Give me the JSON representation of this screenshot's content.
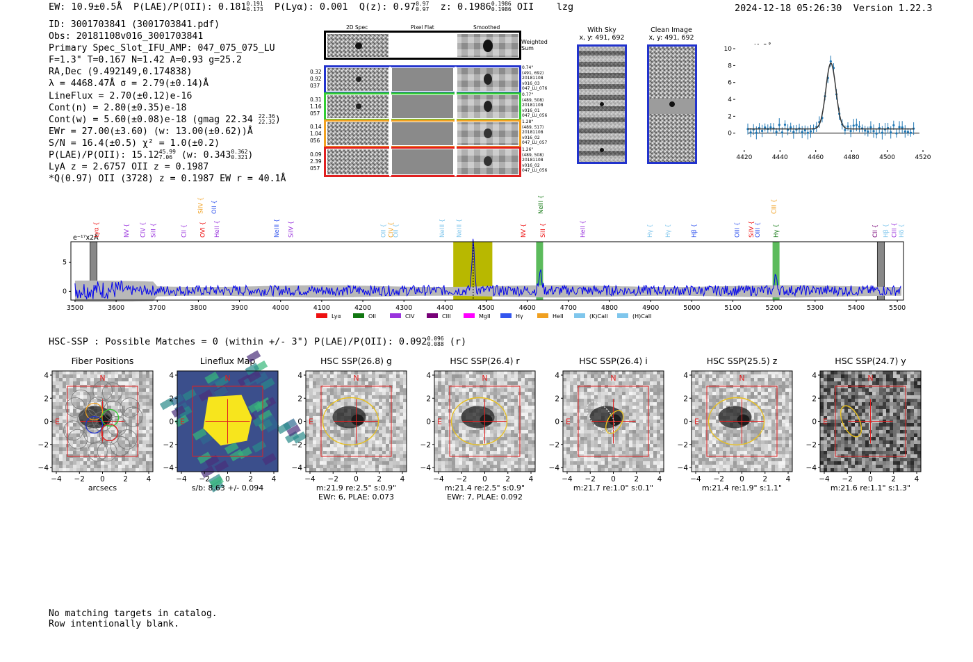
{
  "header": {
    "ew": "EW: 10.9±0.5Å",
    "plae_label": "P(LAE)/P(OII):",
    "plae_val": "0.181",
    "plae_hi": "0.191",
    "plae_lo": "0.173",
    "plya": "P(Lyα): 0.001",
    "qz_label": "Q(z):",
    "qz_val": "0.97",
    "qz_hi": "0.97",
    "qz_lo": "0.97",
    "z_label": "z:",
    "z_val": "0.1986",
    "z_hi": "0.1986",
    "z_lo": "0.1986",
    "z_line": "OII",
    "tag": "lzg",
    "timestamp": "2024-12-18 05:26:30",
    "version": "Version 1.22.3"
  },
  "info": {
    "id": "ID: 3001703841 (3001703841.pdf)",
    "obs": "Obs: 20181108v016_3001703841",
    "primary": "Primary Spec_Slot_IFU_AMP: 047_075_075_LU",
    "fwhm": "F=1.3\"  T=0.167  N=1.42  A=0.93  g=25.2",
    "radec": "RA,Dec (9.492149,0.174838)",
    "lambda": "λ = 4468.47Å  σ = 2.79(±0.14)Å",
    "lineflux": "LineFlux = 2.70(±0.12)e-16",
    "contn": "Cont(n) = 2.80(±0.35)e-18",
    "contw": "Cont(w) = 5.60(±0.08)e-18 (gmag 22.34",
    "contw_hi": "22.36",
    "contw_lo": "22.32",
    "contw_end": ")",
    "ewr": "EWr = 27.00(±3.60) (w: 13.00(±0.62))Å",
    "sn": "S/N = 16.4(±0.5)  χ² = 1.0(±0.2)",
    "plae": "P(LAE)/P(OII): 15.12",
    "plae_hi": "45.99",
    "plae_lo": "7.06",
    "plae_w": "(w: 0.343",
    "plae_w_hi": "0.362",
    "plae_w_lo": "0.321",
    "plae_w_end": ")",
    "lya": "LyA z = 2.6757  OII z = 0.1987",
    "q": "*Q(0.97) OII (3728) z = 0.1987  EW r = 40.1Å"
  },
  "stamps": {
    "col_2d": "2D Spec",
    "col_flat": "Pixel Flat",
    "col_smooth": "Smoothed",
    "weighted": [
      "Weighted",
      "Sum"
    ],
    "rows": [
      {
        "color": "#2233cc",
        "left": [
          "0.32",
          "0.92",
          "037"
        ],
        "right": [
          "0.74\"",
          "(491, 692)",
          "20181108",
          "v016_03",
          "047_LU_076"
        ]
      },
      {
        "color": "#33cc33",
        "left": [
          "0.31",
          "1.16",
          "057"
        ],
        "right": [
          "0.77\"",
          "(489, 508)",
          "20181108",
          "v016_01",
          "047_LU_056"
        ]
      },
      {
        "color": "#f0a020",
        "left": [
          "0.14",
          "1.04",
          "056"
        ],
        "right": [
          "1.28\"",
          "(489, 517)",
          "20181108",
          "v016_02",
          "047_LU_057"
        ]
      },
      {
        "color": "#e02020",
        "left": [
          "0.09",
          "2.39",
          "057"
        ],
        "right": [
          "1.26\"",
          "(489, 508)",
          "20181108",
          "v016_02",
          "047_LU_056"
        ]
      }
    ],
    "sky_title": "With Sky",
    "sky_coords": "x, y: 491, 692",
    "clean_title": "Clean Image",
    "clean_coords": "x, y: 491, 692"
  },
  "colors": {
    "blue": "#0000ee",
    "yellow": "#b8b800",
    "green": "#33aa33",
    "fit": "#1f77b4"
  },
  "chart_data": [
    {
      "type": "scatter",
      "title": "",
      "ylabel": "e⁻¹⁷x2Å",
      "xlim": [
        4415,
        4520
      ],
      "ylim": [
        -2,
        10.5
      ],
      "xticks": [
        "4420",
        "4440",
        "4460",
        "4480",
        "4500",
        "4520"
      ],
      "yticks": [
        "0",
        "2",
        "4",
        "6",
        "8",
        "10"
      ],
      "line_center": 4468.47,
      "line_sigma": 2.79,
      "line_peak": 7.8,
      "continuum": 0.5
    },
    {
      "type": "line",
      "ylabel": "e⁻¹⁷x2Å",
      "xlim": [
        3490,
        5515
      ],
      "ylim": [
        -1.5,
        8.5
      ],
      "xticks": [
        "3500",
        "3600",
        "3700",
        "3800",
        "3900",
        "4000",
        "4100",
        "4200",
        "4300",
        "4400",
        "4500",
        "4600",
        "4700",
        "4800",
        "4900",
        "5000",
        "5100",
        "5200",
        "5300",
        "5400",
        "5500"
      ],
      "yticks": [
        "0",
        "5"
      ],
      "highlight_band": [
        4420,
        4515
      ],
      "marked_lines": [
        4630,
        5205
      ],
      "masked": [
        3545,
        5460
      ],
      "legend": [
        {
          "label": "Lyα",
          "color": "#ee1111"
        },
        {
          "label": "OII",
          "color": "#117711"
        },
        {
          "label": "CIV",
          "color": "#9933dd"
        },
        {
          "label": "CIII",
          "color": "#770077"
        },
        {
          "label": "MgII",
          "color": "#ff00ff"
        },
        {
          "label": "Hγ",
          "color": "#3355ee"
        },
        {
          "label": "HeII",
          "color": "#f0a020"
        },
        {
          "label": "(K)CaII",
          "color": "#7fc6ec"
        },
        {
          "label": "(H)CaII",
          "color": "#7fc6ec"
        }
      ],
      "line_labels": [
        {
          "name": "Lyα",
          "x": 3552,
          "row": 0,
          "color": "#ee1111"
        },
        {
          "name": "NV",
          "x": 3625,
          "row": 0,
          "color": "#9933dd"
        },
        {
          "name": "CIV",
          "x": 3665,
          "row": 0,
          "color": "#9933dd"
        },
        {
          "name": "SiII",
          "x": 3690,
          "row": 0,
          "color": "#9933dd"
        },
        {
          "name": "CII",
          "x": 3765,
          "row": 0,
          "color": "#9933dd"
        },
        {
          "name": "SiIV",
          "x": 3805,
          "row": 2,
          "color": "#f0a020"
        },
        {
          "name": "OVI",
          "x": 3810,
          "row": 0,
          "color": "#ee1111"
        },
        {
          "name": "OII",
          "x": 3838,
          "row": 2,
          "color": "#3355ee"
        },
        {
          "name": "HeII",
          "x": 3845,
          "row": 0,
          "color": "#9933dd"
        },
        {
          "name": "NeIII",
          "x": 3990,
          "row": 0,
          "color": "#3355ee"
        },
        {
          "name": "SiIV",
          "x": 4025,
          "row": 0,
          "color": "#9933dd"
        },
        {
          "name": "OII",
          "x": 4250,
          "row": 0,
          "color": "#7fc6ec"
        },
        {
          "name": "CIV",
          "x": 4268,
          "row": 0,
          "color": "#f0a020"
        },
        {
          "name": "OII",
          "x": 4280,
          "row": 0,
          "color": "#7fc6ec"
        },
        {
          "name": "NeIII",
          "x": 4393,
          "row": 0,
          "color": "#7fc6ec"
        },
        {
          "name": "NeIII",
          "x": 4434,
          "row": 0,
          "color": "#7fc6ec"
        },
        {
          "name": "NV",
          "x": 4590,
          "row": 0,
          "color": "#ee1111"
        },
        {
          "name": "NeIII",
          "x": 4633,
          "row": 2,
          "color": "#117711"
        },
        {
          "name": "SiII",
          "x": 4638,
          "row": 0,
          "color": "#ee1111"
        },
        {
          "name": "HeII",
          "x": 4735,
          "row": 0,
          "color": "#9933dd"
        },
        {
          "name": "Hγ",
          "x": 4898,
          "row": 0,
          "color": "#7fc6ec"
        },
        {
          "name": "Hγ",
          "x": 4942,
          "row": 0,
          "color": "#7fc6ec"
        },
        {
          "name": "Hβ",
          "x": 5005,
          "row": 0,
          "color": "#3355ee"
        },
        {
          "name": "OIII",
          "x": 5110,
          "row": 0,
          "color": "#3355ee"
        },
        {
          "name": "SiIV",
          "x": 5145,
          "row": 0,
          "color": "#ee1111"
        },
        {
          "name": "OIII",
          "x": 5160,
          "row": 0,
          "color": "#3355ee"
        },
        {
          "name": "CIII",
          "x": 5200,
          "row": 2,
          "color": "#f0a020"
        },
        {
          "name": "Hγ",
          "x": 5205,
          "row": 0,
          "color": "#117711"
        },
        {
          "name": "CII",
          "x": 5446,
          "row": 0,
          "color": "#770077"
        },
        {
          "name": "Hβ",
          "x": 5472,
          "row": 0,
          "color": "#7fc6ec"
        },
        {
          "name": "CIII",
          "x": 5492,
          "row": 0,
          "color": "#9933dd"
        },
        {
          "name": "Hδ",
          "x": 5510,
          "row": 0,
          "color": "#7fc6ec"
        }
      ]
    }
  ],
  "hsc": {
    "summary": "HSC-SSP : Possible Matches = 0 (within +/- 3\")  P(LAE)/P(OII): 0.092",
    "summary_hi": "0.096",
    "summary_lo": "0.088",
    "summary_end": "(r)",
    "axis_ticks": [
      "4",
      "2",
      "0",
      "−2",
      "−4"
    ],
    "x_ticks": [
      "−4",
      "−2",
      "0",
      "2",
      "4"
    ],
    "north": "N",
    "east": "E",
    "panels": [
      {
        "title": "Fiber Positions",
        "cap1": "arcsecs",
        "cap2": ""
      },
      {
        "title": "Lineflux Map",
        "cap1": "s/b: 8.63 +/- 0.094",
        "cap2": ""
      },
      {
        "title": "HSC SSP(26.8) g",
        "cap1": "m:21.9  re:2.5\"  s:0.9\"",
        "cap2": "EWr: 6, PLAE: 0.073"
      },
      {
        "title": "HSC SSP(26.4) r",
        "cap1": "m:21.4  re:2.5\"  s:0.9\"",
        "cap2": "EWr: 7, PLAE: 0.092"
      },
      {
        "title": "HSC SSP(26.4) i",
        "cap1": "m:21.7  re:1.0\"  s:0.1\"",
        "cap2": ""
      },
      {
        "title": "HSC SSP(25.5) z",
        "cap1": "m:21.4  re:1.9\"  s:1.1\"",
        "cap2": ""
      },
      {
        "title": "HSC SSP(24.7) y",
        "cap1": "m:21.6  re:1.1\"  s:1.3\"",
        "cap2": ""
      }
    ]
  },
  "footer": {
    "line1": "No matching targets in catalog.",
    "line2": "Row intentionally blank."
  }
}
